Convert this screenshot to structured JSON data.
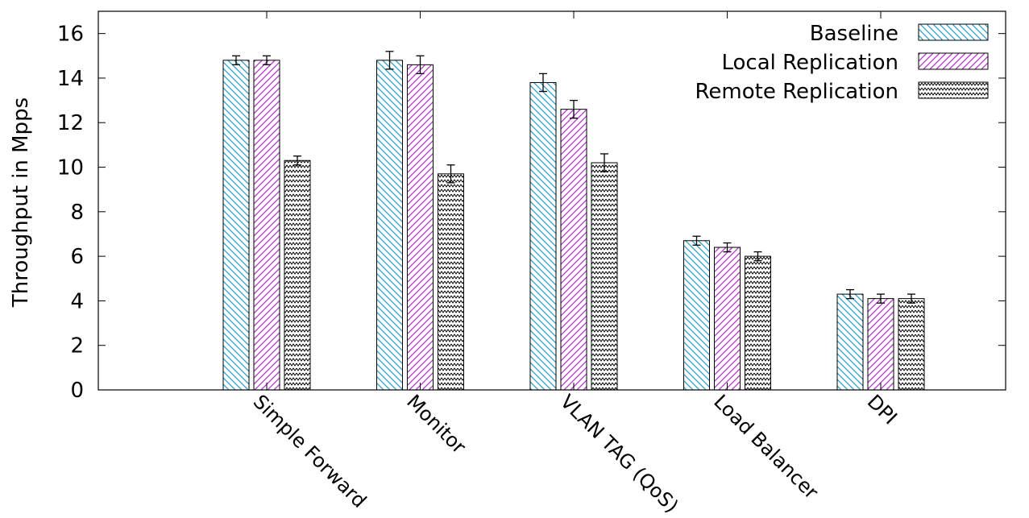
{
  "chart_data": {
    "type": "bar",
    "title": "",
    "xlabel": "",
    "ylabel": "Throughput in Mpps",
    "ylim": [
      0,
      17
    ],
    "yticks": [
      0,
      2,
      4,
      6,
      8,
      10,
      12,
      14,
      16
    ],
    "grid": false,
    "legend_position": "top-right",
    "categories": [
      "Simple Forward",
      "Monitor",
      "VLAN TAG (QoS)",
      "Load Balancer",
      "DPI"
    ],
    "series": [
      {
        "name": "Baseline",
        "pattern": "diagonal-hatch",
        "color": "#2a9fc4",
        "values": [
          14.8,
          14.8,
          13.8,
          6.7,
          4.3
        ],
        "errors": [
          0.2,
          0.4,
          0.4,
          0.2,
          0.2
        ]
      },
      {
        "name": "Local Replication",
        "pattern": "diagonal-hatch",
        "color": "#b530cc",
        "values": [
          14.8,
          14.6,
          12.6,
          6.4,
          4.1
        ],
        "errors": [
          0.2,
          0.4,
          0.4,
          0.2,
          0.2
        ]
      },
      {
        "name": "Remote  Replication",
        "pattern": "zigzag",
        "color": "#000000",
        "values": [
          10.3,
          9.7,
          10.2,
          6.0,
          4.1
        ],
        "errors": [
          0.2,
          0.4,
          0.4,
          0.2,
          0.2
        ]
      }
    ]
  }
}
